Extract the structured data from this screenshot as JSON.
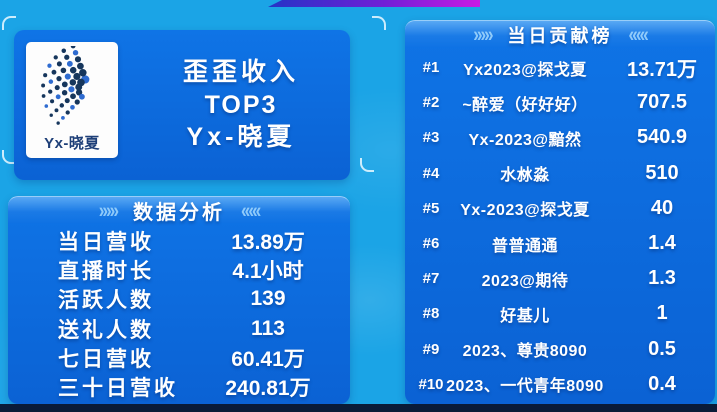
{
  "theme": {
    "bg": "#1BA4E6",
    "card_top": "#0F74E6",
    "card_bottom": "#0B62D4",
    "header_light": "#6FB6F4",
    "text": "#FFFFFF",
    "strip": "#0A1B38",
    "banner_a": "#2433C6",
    "banner_b": "#711FD6",
    "banner_c": "#C81BE4",
    "logo_navy": "#16365C",
    "logo_blue": "#2E6BD0",
    "logo_label": "#1E3F78"
  },
  "top_card": {
    "logo_label": "Yx-晓夏",
    "title_lines": [
      "歪歪收入",
      "TOP3",
      "Yx-晓夏"
    ]
  },
  "stats_card": {
    "title": "数据分析",
    "rows": [
      {
        "label": "当日营收",
        "value": "13.89万"
      },
      {
        "label": "直播时长",
        "value": "4.1小时"
      },
      {
        "label": "活跃人数",
        "value": "139"
      },
      {
        "label": "送礼人数",
        "value": "113"
      },
      {
        "label": "七日营收",
        "value": "60.41万"
      },
      {
        "label": "三十日营收",
        "value": "240.81万"
      }
    ]
  },
  "rank_card": {
    "title": "当日贡献榜",
    "rows": [
      {
        "rank": "#1",
        "name": "Yx2023@探戈夏",
        "value": "13.71万"
      },
      {
        "rank": "#2",
        "name": "~醉爱（好好好）",
        "value": "707.5"
      },
      {
        "rank": "#3",
        "name": "Yx-2023@黯然",
        "value": "540.9"
      },
      {
        "rank": "#4",
        "name": "水沝淼",
        "value": "510"
      },
      {
        "rank": "#5",
        "name": "Yx-2023@探戈夏",
        "value": "40"
      },
      {
        "rank": "#6",
        "name": "普普通通",
        "value": "1.4"
      },
      {
        "rank": "#7",
        "name": "2023@期待",
        "value": "1.3"
      },
      {
        "rank": "#8",
        "name": "好基儿",
        "value": "1"
      },
      {
        "rank": "#9",
        "name": "2023、尊贵8090",
        "value": "0.5"
      },
      {
        "rank": "#10",
        "name": "2023、一代青年8090",
        "value": "0.4"
      }
    ]
  },
  "decor": {
    "arrows_right": "›››››",
    "arrows_left": "‹‹‹‹‹"
  }
}
